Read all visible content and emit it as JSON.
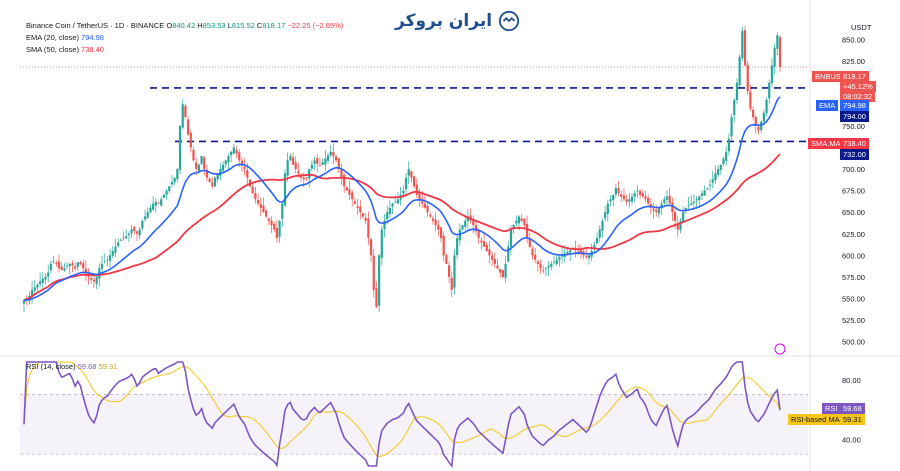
{
  "header": {
    "symbol": "Binance Coin / TetherUS · 1D · BINANCE",
    "ohlc": {
      "o_label": "O",
      "o": "840.42",
      "h_label": "H",
      "h": "853.53",
      "l_label": "L",
      "l": "815.52",
      "c_label": "C",
      "c": "818.17",
      "change": "−22.25 (−2.65%)"
    },
    "ema_label": "EMA (20, close)",
    "ema_value": "794.98",
    "sma_label": "SMA (50, close)",
    "sma_value": "738.40",
    "rsi_label": "RSI (14, close)",
    "rsi_value": "59.68",
    "rsi_ma_value": "59.31"
  },
  "watermark": {
    "text": "ایران بروکر",
    "icon": "handshake-icon"
  },
  "colors": {
    "up": "#26a69a",
    "down": "#ef5350",
    "ema": "#2962ff",
    "sma": "#f23645",
    "rsi": "#7e57c2",
    "rsi_ma": "#f5c518",
    "level": "#0b1a8a"
  },
  "chart_data": [
    {
      "type": "candlestick",
      "currency": "USDT",
      "symbol_tag": "BNBUSDT",
      "ylim": [
        488,
        875
      ],
      "yticks": [
        500,
        525,
        550,
        575,
        600,
        625,
        650,
        675,
        700,
        725,
        750,
        775,
        800,
        825,
        850
      ],
      "price_axis_labels": {
        "last_price": "818.17",
        "change_pct": "+45.12%",
        "countdown": "08:02:32",
        "ema_tag": "EMA",
        "ema": "794.98",
        "level_upper": "794.00",
        "sma_tag": "SMA:MA",
        "sma": "738.40",
        "level_lower": "732.00"
      },
      "horizontal_levels": [
        794,
        732
      ],
      "last_price": 818.17,
      "ema_last": 794.98,
      "sma_last": 738.4,
      "candles_close": [
        548,
        550,
        553,
        560,
        563,
        566,
        570,
        573,
        575,
        580,
        590,
        593,
        590,
        585,
        583,
        585,
        588,
        590,
        588,
        585,
        592,
        590,
        585,
        580,
        575,
        572,
        570,
        575,
        585,
        590,
        593,
        595,
        600,
        605,
        610,
        615,
        618,
        620,
        622,
        625,
        630,
        628,
        625,
        630,
        640,
        645,
        650,
        655,
        660,
        662,
        660,
        665,
        670,
        675,
        680,
        685,
        690,
        700,
        750,
        775,
        760,
        740,
        725,
        710,
        700,
        705,
        715,
        700,
        690,
        685,
        680,
        690,
        695,
        700,
        705,
        710,
        715,
        720,
        725,
        718,
        710,
        705,
        700,
        690,
        680,
        672,
        665,
        660,
        655,
        650,
        645,
        640,
        635,
        630,
        620,
        640,
        660,
        695,
        710,
        715,
        705,
        700,
        695,
        690,
        688,
        690,
        700,
        705,
        710,
        706,
        704,
        708,
        712,
        716,
        720,
        715,
        710,
        700,
        690,
        680,
        675,
        670,
        665,
        660,
        655,
        650,
        645,
        640,
        620,
        600,
        560,
        540,
        600,
        630,
        640,
        650,
        655,
        660,
        662,
        665,
        670,
        675,
        690,
        700,
        690,
        680,
        670,
        665,
        660,
        655,
        650,
        645,
        640,
        635,
        630,
        620,
        600,
        590,
        575,
        560,
        600,
        620,
        630,
        635,
        640,
        645,
        640,
        635,
        628,
        620,
        615,
        610,
        605,
        600,
        595,
        590,
        585,
        580,
        575,
        590,
        610,
        630,
        635,
        640,
        645,
        640,
        635,
        620,
        610,
        600,
        595,
        590,
        585,
        582,
        585,
        588,
        590,
        592,
        595,
        598,
        600,
        602,
        604,
        606,
        608,
        606,
        604,
        602,
        600,
        598,
        600,
        605,
        612,
        620,
        630,
        640,
        650,
        660,
        665,
        670,
        678,
        672,
        668,
        665,
        662,
        665,
        668,
        672,
        675,
        670,
        668,
        665,
        660,
        655,
        652,
        650,
        655,
        660,
        665,
        668,
        660,
        650,
        640,
        630,
        640,
        650,
        655,
        658,
        660,
        662,
        665,
        668,
        672,
        675,
        678,
        682,
        688,
        695,
        700,
        705,
        712,
        720,
        735,
        760,
        780,
        800,
        830,
        860,
        820,
        790,
        770,
        760,
        750,
        745,
        755,
        765,
        780,
        800,
        820,
        840,
        855,
        818.17
      ]
    },
    {
      "type": "line",
      "name": "RSI (14, close)",
      "ylim": [
        22,
        92
      ],
      "yticks": [
        40,
        60,
        80
      ],
      "upper_band": 70,
      "lower_band": 30,
      "price_axis_labels": {
        "rsi_tag": "RSI",
        "rsi": "59.68",
        "ma_tag": "RSI-based MA",
        "ma": "59.31"
      },
      "last": 59.68,
      "ma_last": 59.31
    }
  ]
}
